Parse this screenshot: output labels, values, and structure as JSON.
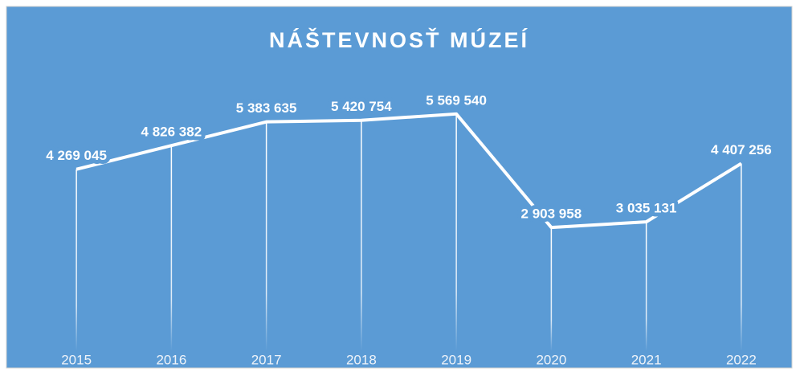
{
  "chart_data": {
    "type": "line",
    "title": "NÁŠTEVNOSŤ MÚZEÍ",
    "categories": [
      "2015",
      "2016",
      "2017",
      "2018",
      "2019",
      "2020",
      "2021",
      "2022"
    ],
    "values": [
      4269045,
      4826382,
      5383635,
      5420754,
      5569540,
      2903958,
      3035131,
      4407256
    ],
    "value_labels": [
      "4 269 045",
      "4 826 382",
      "5 383 635",
      "5 420 754",
      "5 569 540",
      "2 903 958",
      "3 035 131",
      "4 407 256"
    ],
    "color": "#ffffff",
    "background": "#5b9bd5",
    "ylim": [
      0,
      7000000
    ],
    "drop_lines": true
  }
}
